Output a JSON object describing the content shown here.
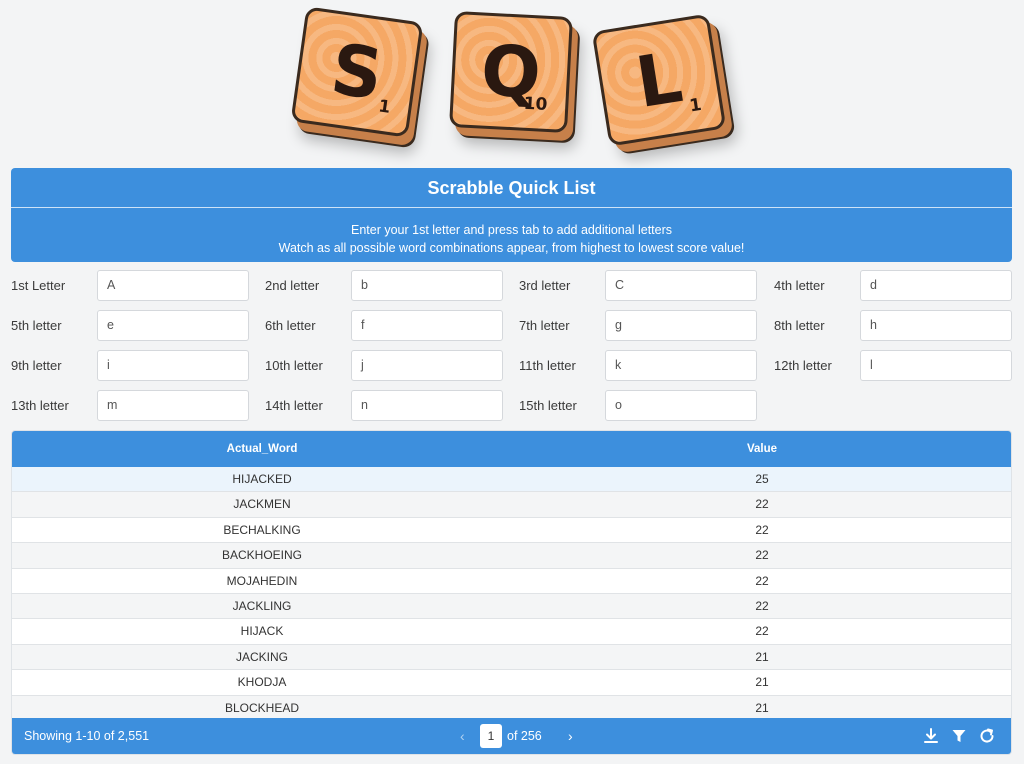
{
  "logo": {
    "tiles": [
      {
        "letter": "S",
        "score": "1"
      },
      {
        "letter": "Q",
        "score": "10"
      },
      {
        "letter": "L",
        "score": "1"
      }
    ]
  },
  "header": {
    "title": "Scrabble Quick List",
    "line1": "Enter your 1st letter and press tab to add additional letters",
    "line2": "Watch as all possible word combinations appear, from highest to lowest score value!"
  },
  "letters": [
    {
      "label": "1st Letter",
      "value": "A"
    },
    {
      "label": "2nd letter",
      "value": "b"
    },
    {
      "label": "3rd letter",
      "value": "C"
    },
    {
      "label": "4th letter",
      "value": "d"
    },
    {
      "label": "5th letter",
      "value": "e"
    },
    {
      "label": "6th letter",
      "value": "f"
    },
    {
      "label": "7th letter",
      "value": "g"
    },
    {
      "label": "8th letter",
      "value": "h"
    },
    {
      "label": "9th letter",
      "value": "i"
    },
    {
      "label": "10th letter",
      "value": "j"
    },
    {
      "label": "11th letter",
      "value": "k"
    },
    {
      "label": "12th letter",
      "value": "l"
    },
    {
      "label": "13th letter",
      "value": "m"
    },
    {
      "label": "14th letter",
      "value": "n"
    },
    {
      "label": "15th letter",
      "value": "o"
    }
  ],
  "table": {
    "columns": [
      "Actual_Word",
      "Value"
    ],
    "rows": [
      [
        "HIJACKED",
        "25"
      ],
      [
        "JACKMEN",
        "22"
      ],
      [
        "BECHALKING",
        "22"
      ],
      [
        "BACKHOEING",
        "22"
      ],
      [
        "MOJAHEDIN",
        "22"
      ],
      [
        "JACKLING",
        "22"
      ],
      [
        "HIJACK",
        "22"
      ],
      [
        "JACKING",
        "21"
      ],
      [
        "KHODJA",
        "21"
      ],
      [
        "BLOCKHEAD",
        "21"
      ]
    ]
  },
  "footer": {
    "showing": "Showing 1-10 of 2,551",
    "page": "1",
    "of_pages": "of 256",
    "prev": "‹",
    "next": "›"
  },
  "icons": [
    "download-icon",
    "filter-icon",
    "refresh-icon"
  ]
}
